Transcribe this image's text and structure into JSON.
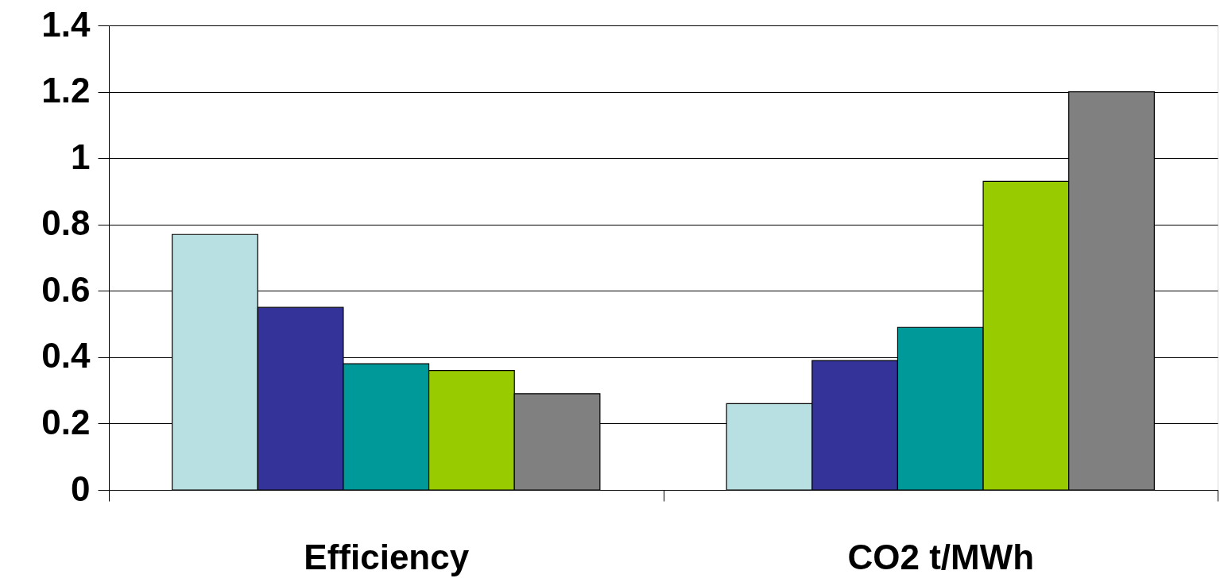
{
  "chart_data": {
    "type": "bar",
    "categories": [
      "Efficiency",
      "CO2 t/MWh"
    ],
    "series": [
      {
        "color": "#b8e0e3",
        "values": [
          0.77,
          0.26
        ]
      },
      {
        "color": "#333399",
        "values": [
          0.55,
          0.39
        ]
      },
      {
        "color": "#009999",
        "values": [
          0.38,
          0.49
        ]
      },
      {
        "color": "#99cc00",
        "values": [
          0.36,
          0.93
        ]
      },
      {
        "color": "#808080",
        "values": [
          0.29,
          1.2
        ]
      }
    ],
    "ylim": [
      0,
      1.4
    ],
    "yticks": [
      0,
      0.2,
      0.4,
      0.6,
      0.8,
      1,
      1.2,
      1.4
    ],
    "grid": "y",
    "legend": false
  }
}
